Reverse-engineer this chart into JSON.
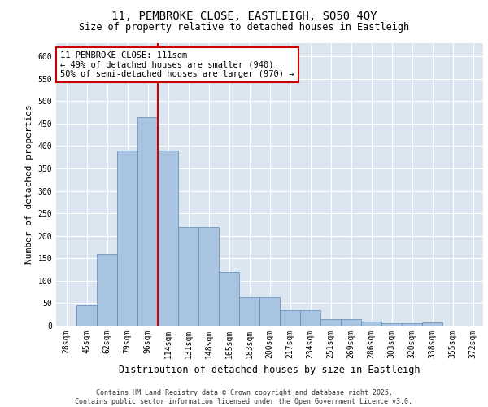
{
  "title1": "11, PEMBROKE CLOSE, EASTLEIGH, SO50 4QY",
  "title2": "Size of property relative to detached houses in Eastleigh",
  "xlabel": "Distribution of detached houses by size in Eastleigh",
  "ylabel": "Number of detached properties",
  "footer1": "Contains HM Land Registry data © Crown copyright and database right 2025.",
  "footer2": "Contains public sector information licensed under the Open Government Licence v3.0.",
  "annotation_title": "11 PEMBROKE CLOSE: 111sqm",
  "annotation_line1": "← 49% of detached houses are smaller (940)",
  "annotation_line2": "50% of semi-detached houses are larger (970) →",
  "property_line_x": 4.5,
  "categories": [
    "28sqm",
    "45sqm",
    "62sqm",
    "79sqm",
    "96sqm",
    "114sqm",
    "131sqm",
    "148sqm",
    "165sqm",
    "183sqm",
    "200sqm",
    "217sqm",
    "234sqm",
    "251sqm",
    "269sqm",
    "286sqm",
    "303sqm",
    "320sqm",
    "338sqm",
    "355sqm",
    "372sqm"
  ],
  "values": [
    0,
    45,
    160,
    390,
    465,
    390,
    220,
    220,
    120,
    63,
    63,
    35,
    35,
    14,
    14,
    9,
    5,
    5,
    7,
    0,
    0
  ],
  "bar_color": "#a8c4e0",
  "bar_edge_color": "#5a8ab5",
  "line_color": "#cc0000",
  "background_color": "#dce6f0",
  "ylim": [
    0,
    630
  ],
  "yticks": [
    0,
    50,
    100,
    150,
    200,
    250,
    300,
    350,
    400,
    450,
    500,
    550,
    600
  ],
  "annotation_box_color": "#ffffff",
  "annotation_box_edge": "#cc0000",
  "title_fontsize": 10,
  "subtitle_fontsize": 8.5,
  "axis_label_fontsize": 8,
  "xlabel_fontsize": 8.5,
  "tick_fontsize": 7,
  "footer_fontsize": 6,
  "ann_fontsize": 7.5
}
